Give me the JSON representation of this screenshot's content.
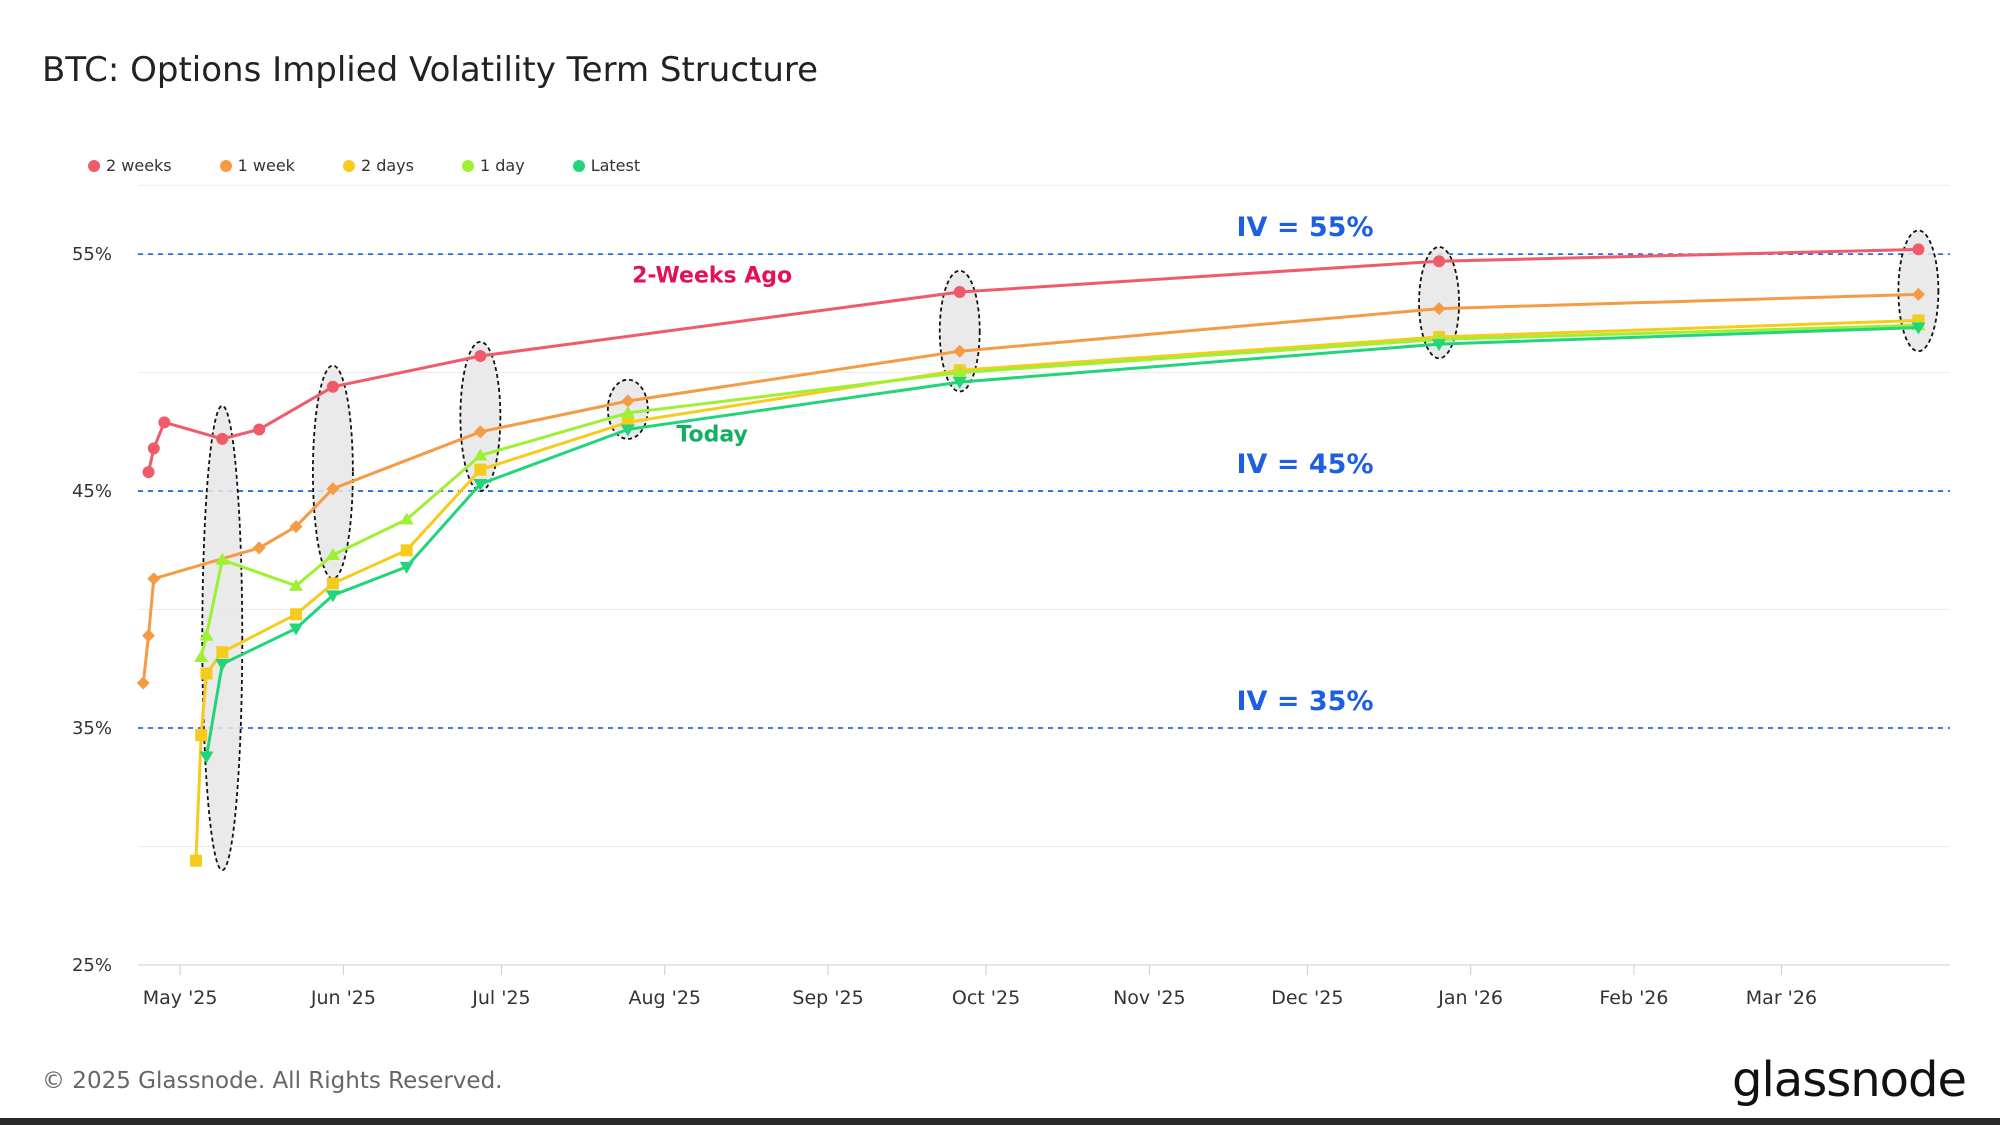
{
  "header": {
    "title": "BTC: Options Implied Volatility Term Structure"
  },
  "footer": {
    "copyright": "© 2025 Glassnode. All Rights Reserved.",
    "brand": "glassnode"
  },
  "chart_data": {
    "type": "line",
    "title": "BTC: Options Implied Volatility Term Structure",
    "xlabel": "",
    "ylabel": "",
    "x_ticks": [
      "May '25",
      "Jun '25",
      "Jul '25",
      "Aug '25",
      "Sep '25",
      "Oct '25",
      "Nov '25",
      "Dec '25",
      "Jan '26",
      "Feb '26",
      "Mar '26"
    ],
    "y_ticks": [
      "25%",
      "35%",
      "45%",
      "55%"
    ],
    "ylim": [
      25,
      58
    ],
    "xlim": [
      "2025-04-23",
      "2026-04-02"
    ],
    "grid": true,
    "legend_position": "top-left",
    "series": [
      {
        "name": "2 weeks",
        "color": "#ef5b6b",
        "marker": "circle",
        "points": [
          [
            "2025-04-25",
            45.8
          ],
          [
            "2025-04-26",
            46.8
          ],
          [
            "2025-04-28",
            47.9
          ],
          [
            "2025-05-09",
            47.2
          ],
          [
            "2025-05-16",
            47.6
          ],
          [
            "2025-05-30",
            49.4
          ],
          [
            "2025-06-27",
            50.7
          ],
          [
            "2025-09-26",
            53.4
          ],
          [
            "2025-12-26",
            54.7
          ],
          [
            "2026-03-27",
            55.2
          ]
        ]
      },
      {
        "name": "1 week",
        "color": "#f59b45",
        "marker": "diamond",
        "points": [
          [
            "2025-04-24",
            36.9
          ],
          [
            "2025-04-25",
            38.9
          ],
          [
            "2025-04-26",
            41.3
          ],
          [
            "2025-05-16",
            42.6
          ],
          [
            "2025-05-23",
            43.5
          ],
          [
            "2025-05-30",
            45.1
          ],
          [
            "2025-06-27",
            47.5
          ],
          [
            "2025-07-25",
            48.8
          ],
          [
            "2025-09-26",
            50.9
          ],
          [
            "2025-12-26",
            52.7
          ],
          [
            "2026-03-27",
            53.3
          ]
        ]
      },
      {
        "name": "2 days",
        "color": "#f5cc1d",
        "marker": "square",
        "points": [
          [
            "2025-05-04",
            29.4
          ],
          [
            "2025-05-05",
            34.7
          ],
          [
            "2025-05-06",
            37.3
          ],
          [
            "2025-05-09",
            38.2
          ],
          [
            "2025-05-23",
            39.8
          ],
          [
            "2025-05-30",
            41.1
          ],
          [
            "2025-06-13",
            42.5
          ],
          [
            "2025-06-27",
            45.9
          ],
          [
            "2025-07-25",
            47.9
          ],
          [
            "2025-09-26",
            50.1
          ],
          [
            "2025-12-26",
            51.5
          ],
          [
            "2026-03-27",
            52.2
          ]
        ]
      },
      {
        "name": "1 day",
        "color": "#9ef034",
        "marker": "triangle-up",
        "points": [
          [
            "2025-05-05",
            38.0
          ],
          [
            "2025-05-06",
            38.9
          ],
          [
            "2025-05-09",
            42.1
          ],
          [
            "2025-05-23",
            41.0
          ],
          [
            "2025-05-30",
            42.3
          ],
          [
            "2025-06-13",
            43.8
          ],
          [
            "2025-06-27",
            46.5
          ],
          [
            "2025-07-25",
            48.3
          ],
          [
            "2025-09-26",
            50.0
          ],
          [
            "2025-12-26",
            51.4
          ],
          [
            "2026-03-27",
            52.0
          ]
        ]
      },
      {
        "name": "Latest",
        "color": "#22d47a",
        "marker": "triangle-down",
        "points": [
          [
            "2025-05-06",
            33.8
          ],
          [
            "2025-05-09",
            37.7
          ],
          [
            "2025-05-23",
            39.2
          ],
          [
            "2025-05-30",
            40.6
          ],
          [
            "2025-06-13",
            41.8
          ],
          [
            "2025-06-27",
            45.3
          ],
          [
            "2025-07-25",
            47.6
          ],
          [
            "2025-09-26",
            49.6
          ],
          [
            "2025-12-26",
            51.2
          ],
          [
            "2026-03-27",
            51.9
          ]
        ]
      }
    ],
    "reference_lines": [
      {
        "label": "IV = 55%",
        "value": 55
      },
      {
        "label": "IV = 45%",
        "value": 45
      },
      {
        "label": "IV = 35%",
        "value": 35
      }
    ],
    "annotations": [
      {
        "text": "2-Weeks Ago",
        "x": "2025-08-10",
        "y": 53.8,
        "color": "#e4105a"
      },
      {
        "text": "Today",
        "x": "2025-08-10",
        "y": 47.1,
        "color": "#10b060"
      }
    ],
    "highlight_ellipses": [
      {
        "x": "2025-05-09",
        "y_min": 29.0,
        "y_max": 48.6
      },
      {
        "x": "2025-05-30",
        "y_min": 41.3,
        "y_max": 50.3
      },
      {
        "x": "2025-06-27",
        "y_min": 45.0,
        "y_max": 51.3
      },
      {
        "x": "2025-07-25",
        "y_min": 47.2,
        "y_max": 49.7
      },
      {
        "x": "2025-09-26",
        "y_min": 49.2,
        "y_max": 54.3
      },
      {
        "x": "2025-12-26",
        "y_min": 50.6,
        "y_max": 55.3
      },
      {
        "x": "2026-03-27",
        "y_min": 50.9,
        "y_max": 56.0
      }
    ]
  }
}
